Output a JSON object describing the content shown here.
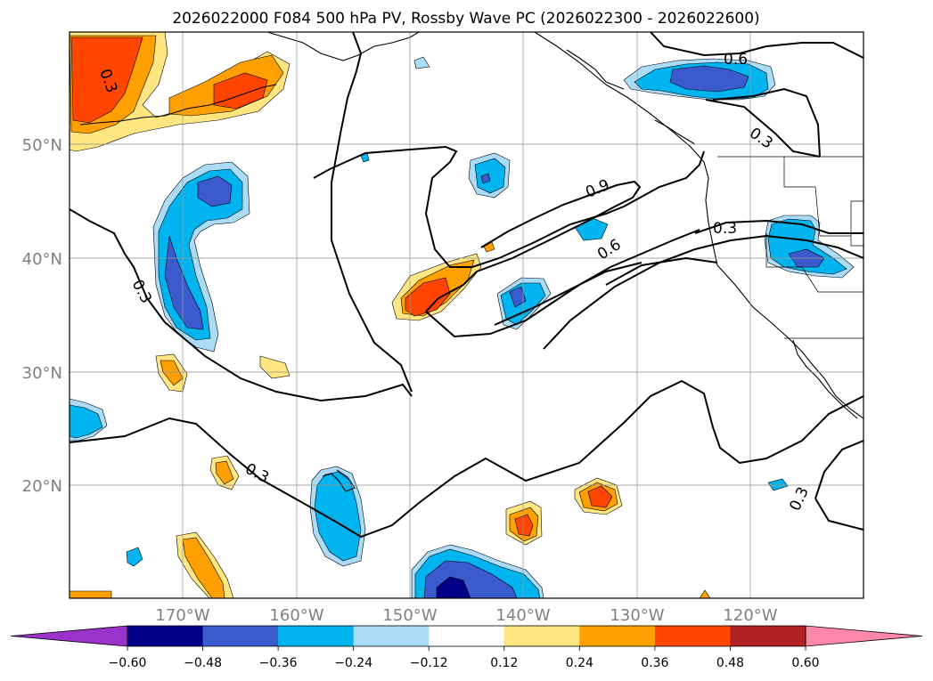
{
  "title": "2026022000 F084 500 hPa PV, Rossby Wave PC (2026022300 - 2026022600)",
  "lat_labels": [
    "50°N",
    "40°N",
    "30°N",
    "20°N"
  ],
  "lon_labels": [
    "170°W",
    "160°W",
    "150°W",
    "140°W",
    "130°W",
    "120°W"
  ],
  "contour_labels": [
    "0.3",
    "0.3",
    "0.3",
    "0.3",
    "0.3",
    "0.3",
    "0.6",
    "0.6",
    "0.9"
  ],
  "colorbar": {
    "ticks": [
      "−0.60",
      "−0.48",
      "−0.36",
      "−0.24",
      "−0.12",
      "0.12",
      "0.24",
      "0.36",
      "0.48",
      "0.60"
    ],
    "colors": [
      "#9933cc",
      "#000088",
      "#3a5acd",
      "#00b4f0",
      "#aadcf8",
      "#ffffff",
      "#ffe680",
      "#ffa000",
      "#ff4500",
      "#b22222",
      "#ff88aa"
    ]
  },
  "palette": {
    "neg_light": "#aadcf8",
    "neg_mid": "#00b4f0",
    "neg_dark": "#3a5acd",
    "neg_darkest": "#000088",
    "pos_light": "#ffe680",
    "pos_mid": "#ffa000",
    "pos_dark": "#ff4500"
  }
}
